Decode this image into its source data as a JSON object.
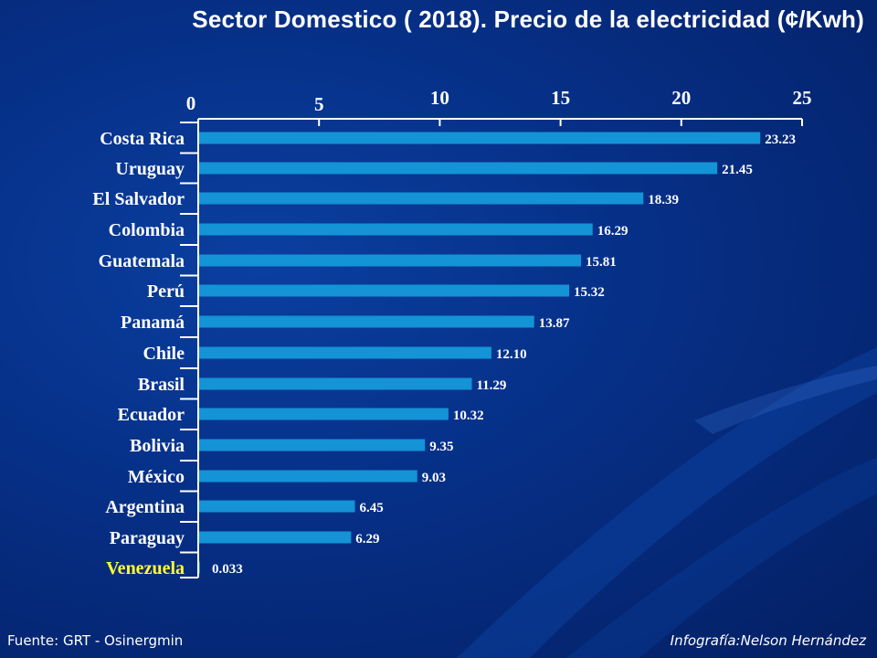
{
  "title": "Sector Domestico ( 2018). Precio de la electricidad  (¢/Kwh)",
  "footer": {
    "source": "Fuente:  GRT - Osinergmin",
    "credit": "Infografía:Nelson Hernández"
  },
  "colors": {
    "bar": "#1493d6",
    "text": "#ffffff",
    "highlight": "#ffff33",
    "axis": "#ffffff"
  },
  "chart_data": {
    "type": "bar",
    "orientation": "horizontal",
    "title": "Sector Domestico ( 2018). Precio de la electricidad  (¢/Kwh)",
    "xlim": [
      0,
      25
    ],
    "xticks": [
      "0",
      "5",
      "10",
      "15",
      "20",
      "25"
    ],
    "tick_values": [
      0,
      5,
      10,
      15,
      20,
      25
    ],
    "x_axis_position": "top",
    "grid": false,
    "legend": "none",
    "categories": [
      "Costa Rica",
      "Uruguay",
      "El Salvador",
      "Colombia",
      "Guatemala",
      "Perú",
      "Panamá",
      "Chile",
      "Brasil",
      "Ecuador",
      "Bolivia",
      "México",
      "Argentina",
      "Paraguay",
      "Venezuela"
    ],
    "values": [
      23.23,
      21.45,
      18.39,
      16.29,
      15.81,
      15.32,
      13.87,
      12.1,
      11.29,
      10.32,
      9.35,
      9.03,
      6.45,
      6.29,
      0.033
    ],
    "value_labels": [
      "23.23",
      "21.45",
      "18.39",
      "16.29",
      "15.81",
      "15.32",
      "13.87",
      "12.10",
      "11.29",
      "10.32",
      "9.35",
      "9.03",
      "6.45",
      "6.29",
      "0.033"
    ],
    "highlight_category": "Venezuela"
  }
}
